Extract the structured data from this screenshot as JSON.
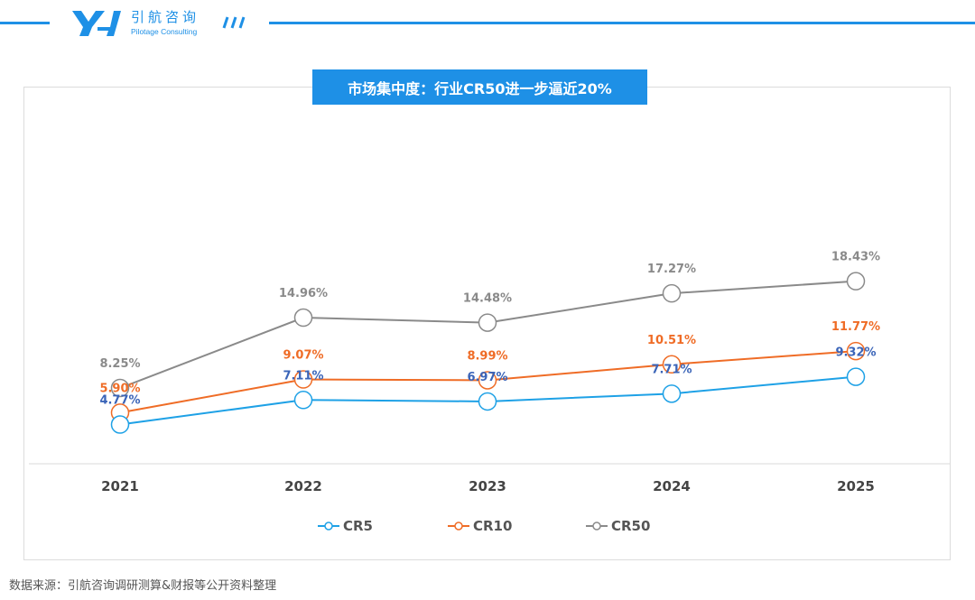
{
  "header": {
    "brand_cn": "引航咨询",
    "brand_en": "Pilotage Consulting",
    "logo_text": "YH"
  },
  "title": "市场集中度：行业CR50进一步逼近20%",
  "source": "数据来源：引航咨询调研测算&财报等公开资料整理",
  "colors": {
    "accent": "#1e90e6",
    "CR5": "#1ea1e6",
    "CR10": "#ef6c26",
    "CR50": "#8a8a8a",
    "CR5_label": "#3a64b8",
    "CR10_label": "#ef6c26",
    "CR50_label": "#8a8a8a"
  },
  "chart_data": {
    "type": "line",
    "x": [
      "2021",
      "2022",
      "2023",
      "2024",
      "2025"
    ],
    "series": [
      {
        "name": "CR5",
        "values": [
          4.77,
          7.11,
          6.97,
          7.71,
          9.32
        ],
        "labels": [
          "4.77%",
          "7.11%",
          "6.97%",
          "7.71%",
          "9.32%"
        ]
      },
      {
        "name": "CR10",
        "values": [
          5.9,
          9.07,
          8.99,
          10.51,
          11.77
        ],
        "labels": [
          "5.90%",
          "9.07%",
          "8.99%",
          "10.51%",
          "11.77%"
        ]
      },
      {
        "name": "CR50",
        "values": [
          8.25,
          14.96,
          14.48,
          17.27,
          18.43
        ],
        "labels": [
          "8.25%",
          "14.96%",
          "14.48%",
          "17.27%",
          "18.43%"
        ]
      }
    ],
    "title": "市场集中度：行业CR50进一步逼近20%",
    "xlabel": "",
    "ylabel": "",
    "grid": false,
    "legend": "bottom-center"
  }
}
